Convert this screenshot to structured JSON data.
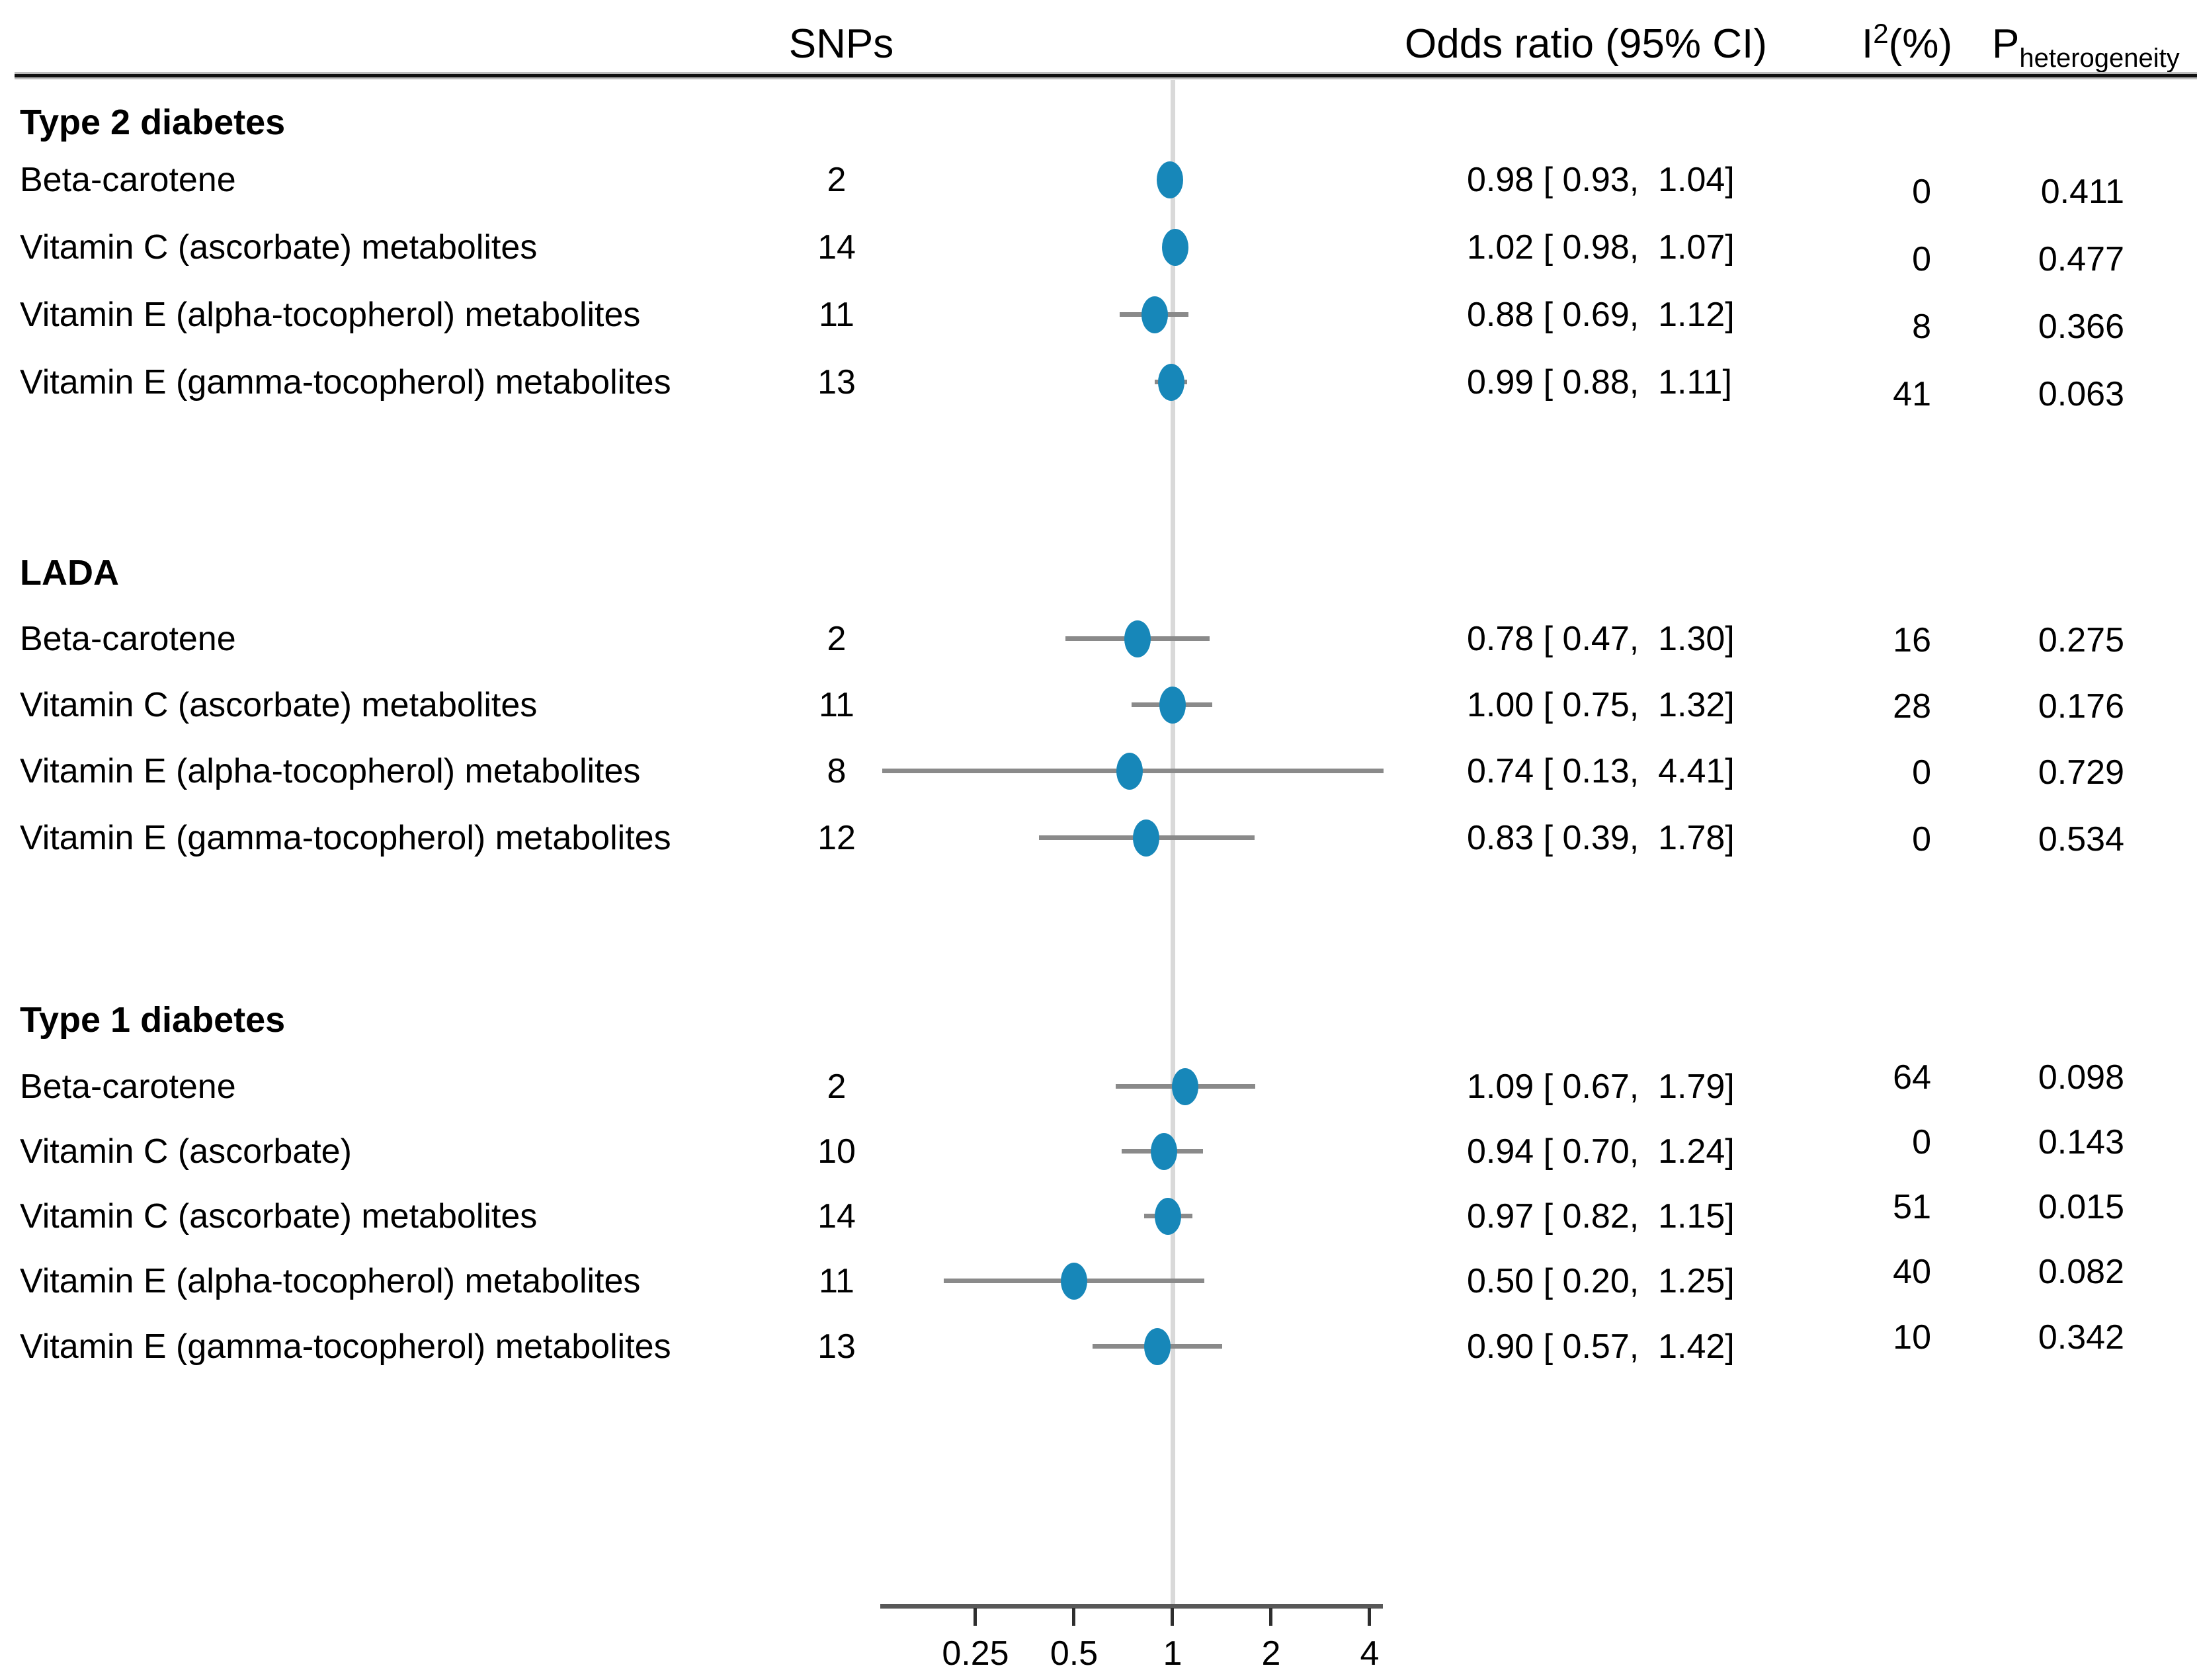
{
  "title_row": {
    "snps": "SNPs",
    "odds_ratio": "Odds ratio (95% CI)",
    "i2_prefix": "I",
    "i2_sup": "2",
    "i2_suffix": "(%)",
    "p_prefix": "P",
    "p_sub": "heterogeneity"
  },
  "colors": {
    "dot": "#1787b9",
    "whisker": "#8a8a8a",
    "ref_line": "#d9d9d9",
    "axis_line": "#585858",
    "tick": "#2e2e2e",
    "rule_dark": "#111111",
    "rule_light": "#bdbdbd",
    "text": "#000000"
  },
  "chart_data": {
    "type": "scatter",
    "subtype": "forest-plot",
    "x_scale": "log2",
    "columns": [
      "SNPs",
      "Odds ratio (95% CI)",
      "I2(%)",
      "Pheterogeneity"
    ],
    "axis": {
      "ticks": [
        0.25,
        0.5,
        1,
        2,
        4
      ],
      "tick_labels": [
        "0.25",
        "0.5",
        "1",
        "2",
        "4"
      ],
      "x_min": 0.125,
      "x_max": 4.6,
      "ref_value": 1,
      "grid": false
    },
    "sections": [
      {
        "header": "Type 2 diabetes",
        "rows": [
          {
            "label": "Beta-carotene",
            "snps": "2",
            "or": 0.98,
            "ci_low": 0.93,
            "ci_high": 1.04,
            "or_label": "0.98 [ 0.93,  1.04]",
            "i2": "0",
            "p_het": "0.411"
          },
          {
            "label": "Vitamin C (ascorbate) metabolites",
            "snps": "14",
            "or": 1.02,
            "ci_low": 0.98,
            "ci_high": 1.07,
            "or_label": "1.02 [ 0.98,  1.07]",
            "i2": "0",
            "p_het": "0.477"
          },
          {
            "label": "Vitamin E (alpha-tocopherol) metabolites",
            "snps": "11",
            "or": 0.88,
            "ci_low": 0.69,
            "ci_high": 1.12,
            "or_label": "0.88 [ 0.69,  1.12]",
            "i2": "8",
            "p_het": "0.366"
          },
          {
            "label": "Vitamin E (gamma-tocopherol) metabolites",
            "snps": "13",
            "or": 0.99,
            "ci_low": 0.88,
            "ci_high": 1.11,
            "or_label": "0.99 [ 0.88,  1.11]",
            "i2": "41",
            "p_het": "0.063"
          }
        ]
      },
      {
        "header": "LADA",
        "rows": [
          {
            "label": "Beta-carotene",
            "snps": "2",
            "or": 0.78,
            "ci_low": 0.47,
            "ci_high": 1.3,
            "or_label": "0.78 [ 0.47,  1.30]",
            "i2": "16",
            "p_het": "0.275"
          },
          {
            "label": "Vitamin C (ascorbate) metabolites",
            "snps": "11",
            "or": 1.0,
            "ci_low": 0.75,
            "ci_high": 1.32,
            "or_label": "1.00 [ 0.75,  1.32]",
            "i2": "28",
            "p_het": "0.176"
          },
          {
            "label": "Vitamin E (alpha-tocopherol) metabolites",
            "snps": "8",
            "or": 0.74,
            "ci_low": 0.13,
            "ci_high": 4.41,
            "or_label": "0.74 [ 0.13,  4.41]",
            "i2": "0",
            "p_het": "0.729"
          },
          {
            "label": "Vitamin E (gamma-tocopherol) metabolites",
            "snps": "12",
            "or": 0.83,
            "ci_low": 0.39,
            "ci_high": 1.78,
            "or_label": "0.83 [ 0.39,  1.78]",
            "i2": "0",
            "p_het": "0.534"
          }
        ]
      },
      {
        "header": "Type 1 diabetes",
        "rows": [
          {
            "label": "Beta-carotene",
            "snps": "2",
            "or": 1.09,
            "ci_low": 0.67,
            "ci_high": 1.79,
            "or_label": "1.09 [ 0.67,  1.79]",
            "i2": "64",
            "p_het": "0.098"
          },
          {
            "label": "Vitamin C (ascorbate)",
            "snps": "10",
            "or": 0.94,
            "ci_low": 0.7,
            "ci_high": 1.24,
            "or_label": "0.94 [ 0.70,  1.24]",
            "i2": "0",
            "p_het": "0.143"
          },
          {
            "label": "Vitamin C (ascorbate) metabolites",
            "snps": "14",
            "or": 0.97,
            "ci_low": 0.82,
            "ci_high": 1.15,
            "or_label": "0.97 [ 0.82,  1.15]",
            "i2": "51",
            "p_het": "0.015"
          },
          {
            "label": "Vitamin E (alpha-tocopherol) metabolites",
            "snps": "11",
            "or": 0.5,
            "ci_low": 0.2,
            "ci_high": 1.25,
            "or_label": "0.50 [ 0.20,  1.25]",
            "i2": "40",
            "p_het": "0.082"
          },
          {
            "label": "Vitamin E (gamma-tocopherol) metabolites",
            "snps": "13",
            "or": 0.9,
            "ci_low": 0.57,
            "ci_high": 1.42,
            "or_label": "0.90 [ 0.57,  1.42]",
            "i2": "10",
            "p_het": "0.342"
          }
        ]
      }
    ]
  }
}
